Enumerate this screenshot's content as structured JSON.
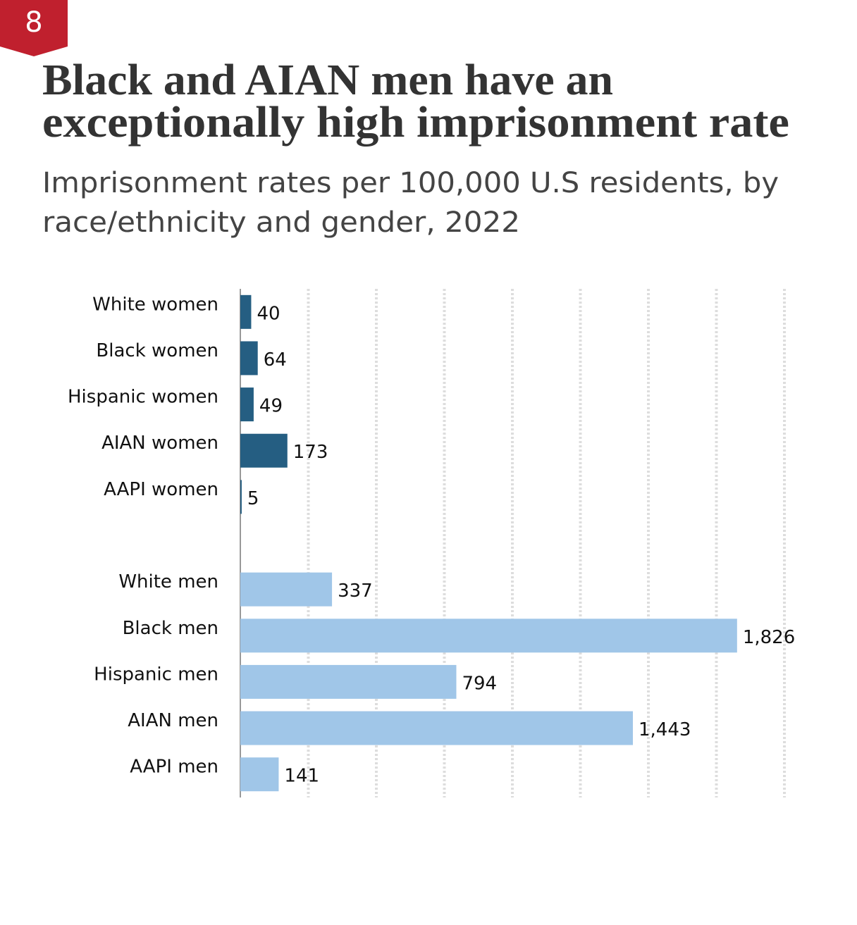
{
  "badge": "8",
  "chart_data": {
    "type": "bar",
    "orientation": "horizontal",
    "title": [
      "Black and AIAN men have an",
      "exceptionally high imprisonment rate"
    ],
    "subtitle": [
      "Imprisonment rates per 100,000 U.S residents, by",
      "race/ethnicity and gender, 2022"
    ],
    "groups": [
      {
        "categories": [
          "White women",
          "Black women",
          "Hispanic women",
          "AIAN women",
          "AAPI women"
        ],
        "values": [
          40,
          64,
          49,
          173,
          5
        ],
        "value_labels": [
          "40",
          "64",
          "49",
          "173",
          "5"
        ],
        "color": "#255e82"
      },
      {
        "categories": [
          "White men",
          "Black men",
          "Hispanic men",
          "AIAN men",
          "AAPI men"
        ],
        "values": [
          337,
          1826,
          794,
          1443,
          141
        ],
        "value_labels": [
          "337",
          "1,826",
          "794",
          "1,443",
          "141"
        ],
        "color": "#a0c6e8"
      }
    ],
    "xlim": [
      0,
      2000
    ],
    "xticks": [
      0,
      250,
      500,
      750,
      1000,
      1250,
      1500,
      1750,
      2000
    ],
    "grid": true
  }
}
